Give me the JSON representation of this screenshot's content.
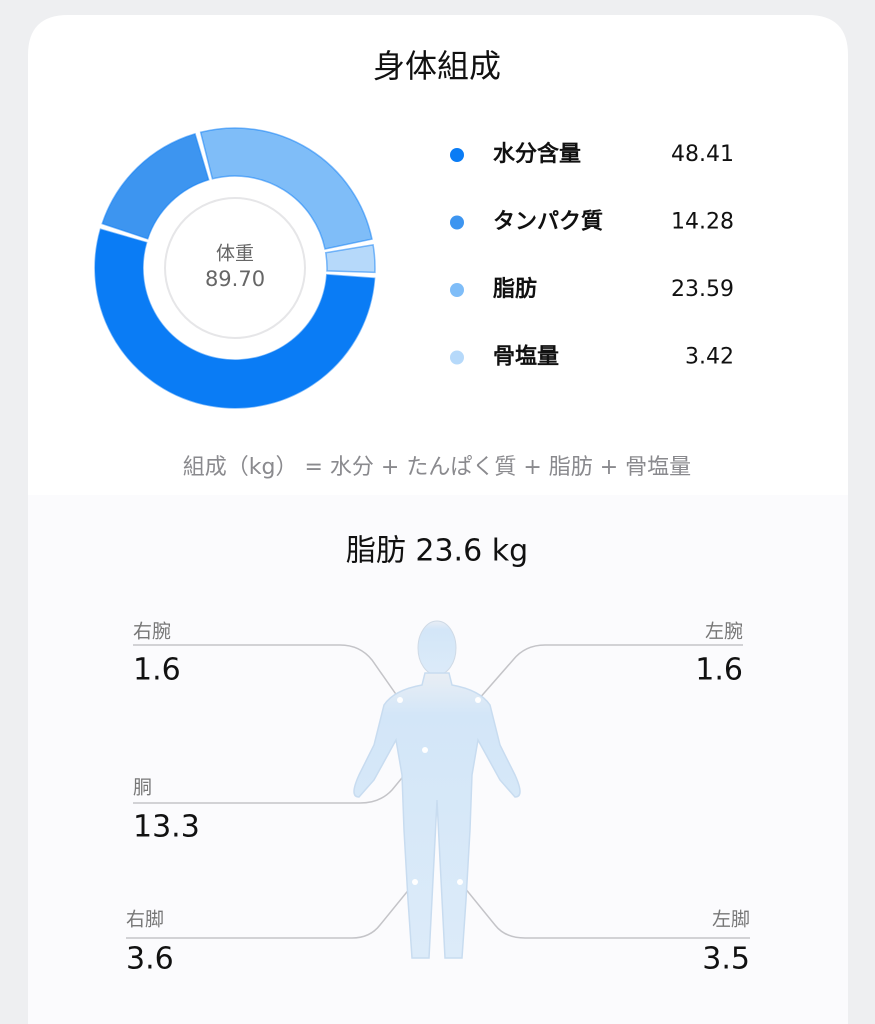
{
  "header": {
    "title": "身体組成"
  },
  "chart_data": {
    "type": "donut",
    "center_label": "体重",
    "center_value": "89.70",
    "categories": [
      "水分含量",
      "タンパク質",
      "脂肪",
      "骨塩量"
    ],
    "values": [
      48.41,
      14.28,
      23.59,
      3.42
    ],
    "colors": [
      "#0a7cf5",
      "#3d95f0",
      "#7fbdf8",
      "#b6d9fa"
    ]
  },
  "formula": "組成（kg） = 水分 + たんぱく質 + 脂肪 + 骨塩量",
  "fat": {
    "title": "脂肪 23.6 kg",
    "parts": [
      {
        "label": "右腕",
        "value": 1.6
      },
      {
        "label": "左腕",
        "value": 1.6
      },
      {
        "label": "胴",
        "value": 13.3
      },
      {
        "label": "右脚",
        "value": 3.6
      },
      {
        "label": "左脚",
        "value": 3.5
      }
    ]
  }
}
